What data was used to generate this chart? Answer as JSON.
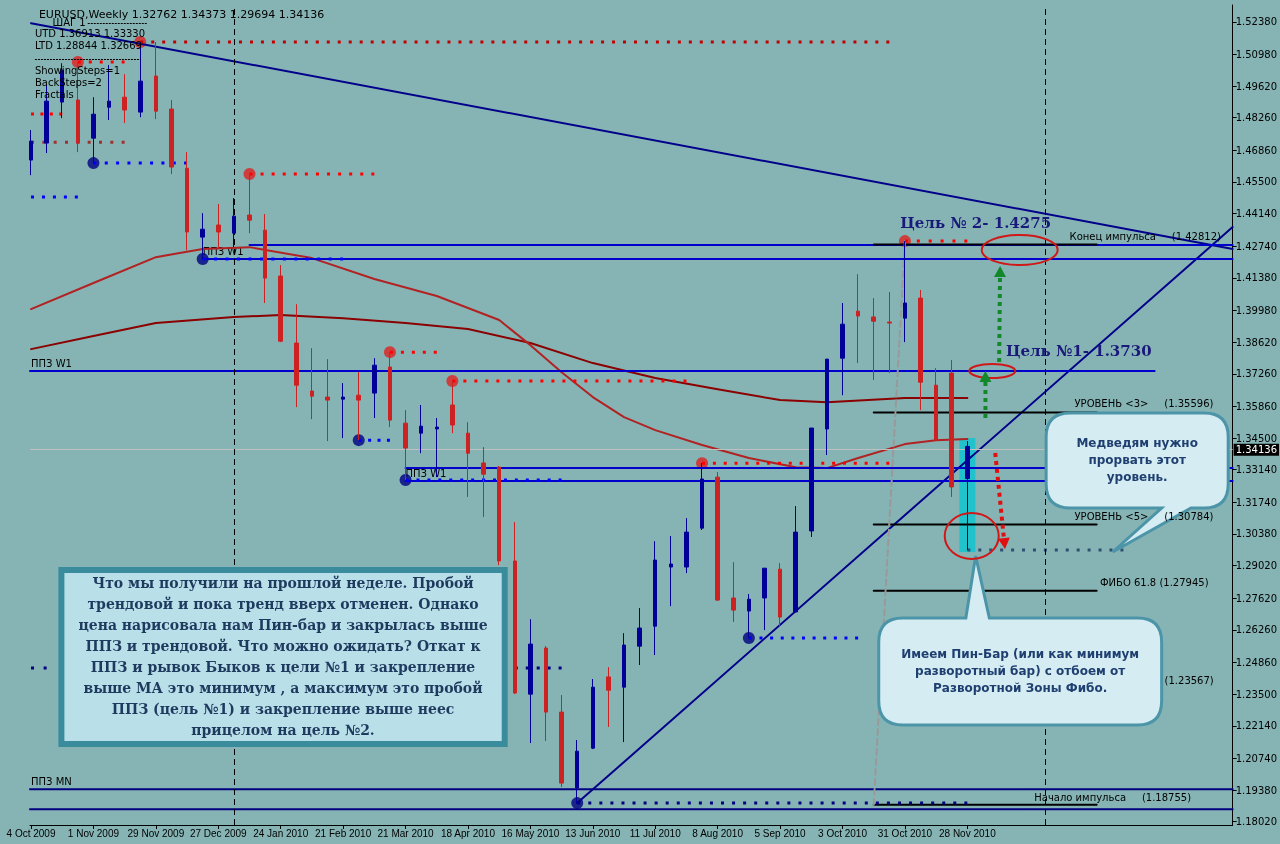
{
  "chart_data": {
    "type": "candlestick",
    "title": "EURUSD,Weekly 1.32762 1.34373 1.29694 1.34136",
    "x": [
      "2009-10-04",
      "2009-10-11",
      "2009-10-18",
      "2009-10-25",
      "2009-11-01",
      "2009-11-08",
      "2009-11-15",
      "2009-11-22",
      "2009-11-29",
      "2009-12-06",
      "2009-12-13",
      "2009-12-20",
      "2009-12-27",
      "2010-01-03",
      "2010-01-10",
      "2010-01-17",
      "2010-01-24",
      "2010-01-31",
      "2010-02-07",
      "2010-02-14",
      "2010-02-21",
      "2010-02-28",
      "2010-03-07",
      "2010-03-14",
      "2010-03-21",
      "2010-03-28",
      "2010-04-04",
      "2010-04-11",
      "2010-04-18",
      "2010-04-25",
      "2010-05-02",
      "2010-05-09",
      "2010-05-16",
      "2010-05-23",
      "2010-05-30",
      "2010-06-06",
      "2010-06-13",
      "2010-06-20",
      "2010-06-27",
      "2010-07-04",
      "2010-07-11",
      "2010-07-18",
      "2010-07-25",
      "2010-08-01",
      "2010-08-08",
      "2010-08-15",
      "2010-08-22",
      "2010-08-29",
      "2010-09-05",
      "2010-09-12",
      "2010-09-19",
      "2010-09-26",
      "2010-10-03",
      "2010-10-10",
      "2010-10-17",
      "2010-10-24",
      "2010-10-31",
      "2010-11-07",
      "2010-11-14",
      "2010-11-21",
      "2010-11-28"
    ],
    "ohlc": [
      [
        1.4644,
        1.4773,
        1.4579,
        1.4725
      ],
      [
        1.4717,
        1.4966,
        1.4674,
        1.4897
      ],
      [
        1.4893,
        1.506,
        1.4824,
        1.503
      ],
      [
        1.4902,
        1.5065,
        1.4678,
        1.4717
      ],
      [
        1.4738,
        1.4914,
        1.4631,
        1.4841
      ],
      [
        1.4871,
        1.5052,
        1.4816,
        1.4897
      ],
      [
        1.4914,
        1.5013,
        1.4803,
        1.4859
      ],
      [
        1.485,
        1.5151,
        1.4828,
        1.4983
      ],
      [
        1.5005,
        1.5151,
        1.482,
        1.4854
      ],
      [
        1.4863,
        1.4902,
        1.4584,
        1.4614
      ],
      [
        1.4609,
        1.4678,
        1.4257,
        1.4335
      ],
      [
        1.4313,
        1.4416,
        1.4219,
        1.4347
      ],
      [
        1.4365,
        1.4455,
        1.4266,
        1.4335
      ],
      [
        1.433,
        1.4481,
        1.427,
        1.4403
      ],
      [
        1.4408,
        1.4584,
        1.433,
        1.4386
      ],
      [
        1.4343,
        1.4412,
        1.403,
        1.4137
      ],
      [
        1.4146,
        1.4193,
        1.3862,
        1.3866
      ],
      [
        1.3858,
        1.4025,
        1.3583,
        1.3677
      ],
      [
        1.3652,
        1.3836,
        1.3531,
        1.363
      ],
      [
        1.3626,
        1.3789,
        1.3437,
        1.3613
      ],
      [
        1.3617,
        1.3686,
        1.345,
        1.3626
      ],
      [
        1.3634,
        1.3733,
        1.3441,
        1.3613
      ],
      [
        1.3643,
        1.3793,
        1.3536,
        1.3763
      ],
      [
        1.3755,
        1.3819,
        1.3497,
        1.3527
      ],
      [
        1.3514,
        1.357,
        1.327,
        1.3407
      ],
      [
        1.3471,
        1.3592,
        1.3385,
        1.3501
      ],
      [
        1.3489,
        1.3536,
        1.3282,
        1.3497
      ],
      [
        1.3592,
        1.3695,
        1.3471,
        1.3506
      ],
      [
        1.3471,
        1.3518,
        1.3197,
        1.3385
      ],
      [
        1.3343,
        1.3411,
        1.3111,
        1.3295
      ],
      [
        1.3325,
        1.333,
        1.2904,
        1.2922
      ],
      [
        1.2922,
        1.3089,
        1.2351,
        1.2355
      ],
      [
        1.235,
        1.2672,
        1.214,
        1.2565
      ],
      [
        1.2548,
        1.2557,
        1.2149,
        1.2273
      ],
      [
        1.2273,
        1.2346,
        1.1951,
        1.1968
      ],
      [
        1.1947,
        1.2153,
        1.1882,
        1.2105
      ],
      [
        1.2118,
        1.2415,
        1.2114,
        1.238
      ],
      [
        1.2424,
        1.2466,
        1.2209,
        1.2367
      ],
      [
        1.238,
        1.2612,
        1.2144,
        1.2561
      ],
      [
        1.2556,
        1.272,
        1.2475,
        1.2634
      ],
      [
        1.2642,
        1.3007,
        1.2518,
        1.2926
      ],
      [
        1.2896,
        1.3029,
        1.2728,
        1.2909
      ],
      [
        1.2896,
        1.3106,
        1.287,
        1.3046
      ],
      [
        1.3063,
        1.3342,
        1.3055,
        1.3274
      ],
      [
        1.3282,
        1.3304,
        1.275,
        1.2754
      ],
      [
        1.2763,
        1.2917,
        1.266,
        1.2711
      ],
      [
        1.2707,
        1.278,
        1.2591,
        1.2758
      ],
      [
        1.2763,
        1.2891,
        1.2625,
        1.2891
      ],
      [
        1.2887,
        1.2913,
        1.2642,
        1.2681
      ],
      [
        1.2703,
        1.3158,
        1.2703,
        1.3046
      ],
      [
        1.3051,
        1.3493,
        1.3025,
        1.3493
      ],
      [
        1.3489,
        1.3789,
        1.3377,
        1.3789
      ],
      [
        1.3793,
        1.403,
        1.3634,
        1.3939
      ],
      [
        1.3995,
        1.4154,
        1.3772,
        1.3974
      ],
      [
        1.397,
        1.4051,
        1.3699,
        1.3952
      ],
      [
        1.3948,
        1.4077,
        1.3729,
        1.3944
      ],
      [
        1.3965,
        1.4296,
        1.3862,
        1.403
      ],
      [
        1.4051,
        1.4086,
        1.357,
        1.369
      ],
      [
        1.3677,
        1.375,
        1.3441,
        1.3441
      ],
      [
        1.3729,
        1.3785,
        1.3197,
        1.324
      ],
      [
        1.3276,
        1.3437,
        1.2969,
        1.3414
      ]
    ],
    "colors": [
      "#000099",
      "#000099",
      "#000099",
      "#cc2222",
      "#000099",
      "#000099",
      "#cc2222",
      "#000099",
      "#cc2222",
      "#cc2222",
      "#cc2222",
      "#000099",
      "#cc2222",
      "#000099",
      "#cc2222",
      "#cc2222",
      "#cc2222",
      "#cc2222",
      "#cc2222",
      "#cc2222",
      "#000099",
      "#cc2222",
      "#000099",
      "#cc2222",
      "#cc2222",
      "#000099",
      "#000099",
      "#cc2222",
      "#cc2222",
      "#cc2222",
      "#cc2222",
      "#cc2222",
      "#000099",
      "#cc2222",
      "#cc2222",
      "#000099",
      "#000099",
      "#cc2222",
      "#000099",
      "#000099",
      "#000099",
      "#000099",
      "#000099",
      "#000099",
      "#cc2222",
      "#cc2222",
      "#000099",
      "#000099",
      "#cc2222",
      "#000099",
      "#000099",
      "#000099",
      "#000099",
      "#cc2222",
      "#cc2222",
      "#cc2222",
      "#000099",
      "#cc2222",
      "#cc2222",
      "#cc2222",
      "#000099"
    ],
    "series": [
      {
        "type": "line",
        "color": "#8b0000",
        "x": [
          "2009-10-04",
          "2009-11-01",
          "2009-11-29",
          "2010-01-03",
          "2010-01-24",
          "2010-02-21",
          "2010-03-21",
          "2010-04-18",
          "2010-05-16",
          "2010-06-13",
          "2010-07-11",
          "2010-08-08",
          "2010-09-05",
          "2010-09-26",
          "2010-10-31",
          "2010-11-28"
        ],
        "values": [
          1.3832,
          1.3888,
          1.3944,
          1.397,
          1.3978,
          1.3965,
          1.3944,
          1.3918,
          1.3858,
          1.3772,
          1.3708,
          1.366,
          1.3613,
          1.3604,
          1.3622,
          1.3622
        ]
      },
      {
        "type": "line",
        "color": "#b22222",
        "x": [
          "2009-10-04",
          "2009-11-01",
          "2009-11-29",
          "2009-12-20",
          "2010-01-10",
          "2010-02-07",
          "2010-03-07",
          "2010-04-04",
          "2010-05-02",
          "2010-05-16",
          "2010-05-30",
          "2010-06-13",
          "2010-06-27",
          "2010-07-11",
          "2010-08-01",
          "2010-08-22",
          "2010-09-12",
          "2010-09-26",
          "2010-10-10",
          "2010-10-31",
          "2010-11-14",
          "2010-11-28"
        ],
        "values": [
          1.4004,
          1.4116,
          1.4227,
          1.4262,
          1.427,
          1.4223,
          1.4133,
          1.406,
          1.3957,
          1.3849,
          1.3733,
          1.3626,
          1.354,
          1.3484,
          1.342,
          1.3364,
          1.3325,
          1.3321,
          1.3364,
          1.3424,
          1.3441,
          1.3446
        ]
      },
      {
        "type": "line",
        "color": "#00008b",
        "x": [
          "2009-10-04",
          "2011-03-27"
        ],
        "values": [
          1.5232,
          1.4262
        ]
      },
      {
        "type": "line",
        "color": "#00008b",
        "x": [
          "2010-06-06",
          "2011-03-27"
        ],
        "values": [
          1.1882,
          1.4356
        ]
      },
      {
        "type": "line",
        "color": "#0000cc",
        "x": [
          "2010-01-10",
          "2011-03-27"
        ],
        "values": [
          1.4279,
          1.4279
        ]
      },
      {
        "type": "line",
        "color": "#0000cc",
        "x": [
          "2009-12-20",
          "2011-03-27"
        ],
        "values": [
          1.4219,
          1.4219
        ]
      },
      {
        "type": "line",
        "color": "#0000cc",
        "x": [
          "2009-10-03T13:00",
          "2011-02-20"
        ],
        "values": [
          1.3738,
          1.3738
        ]
      },
      {
        "type": "line",
        "color": "#0000cc",
        "x": [
          "2010-03-21",
          "2011-03-27"
        ],
        "values": [
          1.3321,
          1.3321
        ]
      },
      {
        "type": "line",
        "color": "#0000cc",
        "x": [
          "2010-03-21",
          "2011-03-27"
        ],
        "values": [
          1.3265,
          1.3265
        ]
      },
      {
        "type": "line",
        "color": "#000080",
        "x": [
          "2009-10-03T13:00",
          "2011-03-27"
        ],
        "values": [
          1.1942,
          1.1942
        ]
      },
      {
        "type": "line",
        "color": "#000080",
        "x": [
          "2009-10-03T13:00",
          "2011-03-27"
        ],
        "values": [
          1.1856,
          1.1856
        ]
      },
      {
        "type": "line",
        "color": "#000000",
        "x": [
          "2010-10-17",
          "2011-01-25"
        ],
        "values": [
          1.42812,
          1.42812
        ]
      },
      {
        "type": "line",
        "color": "#000000",
        "x": [
          "2010-10-17",
          "2011-01-25"
        ],
        "values": [
          1.35596,
          1.35596
        ]
      },
      {
        "type": "line",
        "color": "#000000",
        "x": [
          "2010-10-17",
          "2011-01-25"
        ],
        "values": [
          1.30784,
          1.30784
        ]
      },
      {
        "type": "line",
        "color": "#000000",
        "x": [
          "2010-10-17",
          "2011-01-25"
        ],
        "values": [
          1.27945,
          1.27945
        ]
      },
      {
        "type": "line",
        "color": "#000000",
        "x": [
          "2010-10-17",
          "2011-01-25"
        ],
        "values": [
          1.18755,
          1.18755
        ]
      },
      {
        "type": "line",
        "color": "#999999",
        "line_style": "dashed",
        "x": [
          "2010-10-17",
          "2010-10-31"
        ],
        "values": [
          1.18755,
          1.4296
        ]
      },
      {
        "type": "line",
        "color": "#2f4f6f",
        "line_style": "dotted",
        "x": [
          "2010-11-28",
          "2011-02-06"
        ],
        "values": [
          1.2969,
          1.2969
        ]
      },
      {
        "type": "line",
        "color": "#c00000",
        "line_style": "dotted",
        "x": [
          "2009-11-22",
          "2010-10-24"
        ],
        "values": [
          1.5151,
          1.5151
        ]
      },
      {
        "type": "line",
        "color": "#ff0000",
        "line_style": "dotted",
        "x": [
          "2009-10-25",
          "2009-11-15"
        ],
        "values": [
          1.5065,
          1.5065
        ]
      },
      {
        "type": "line",
        "color": "#ff0000",
        "line_style": "dotted",
        "x": [
          "2009-10-04",
          "2009-10-18"
        ],
        "values": [
          1.4842,
          1.4842
        ]
      },
      {
        "type": "line",
        "color": "#a03030",
        "line_style": "dotted",
        "x": [
          "2009-10-04",
          "2009-11-15"
        ],
        "values": [
          1.4721,
          1.4721
        ]
      },
      {
        "type": "line",
        "color": "#ff0000",
        "line_style": "dotted",
        "x": [
          "2010-01-10",
          "2010-03-07"
        ],
        "values": [
          1.4584,
          1.4584
        ]
      },
      {
        "type": "line",
        "color": "#ff0000",
        "line_style": "dotted",
        "x": [
          "2010-03-14",
          "2010-04-04"
        ],
        "values": [
          1.3819,
          1.3819
        ]
      },
      {
        "type": "line",
        "color": "#ff0000",
        "line_style": "dotted",
        "x": [
          "2010-04-11",
          "2010-07-25"
        ],
        "values": [
          1.3695,
          1.3695
        ]
      },
      {
        "type": "line",
        "color": "#ff0000",
        "line_style": "dotted",
        "x": [
          "2010-08-01",
          "2010-10-24"
        ],
        "values": [
          1.3342,
          1.3342
        ]
      },
      {
        "type": "line",
        "color": "#ff0000",
        "line_style": "dotted",
        "x": [
          "2010-10-31",
          "2010-11-28"
        ],
        "values": [
          1.4296,
          1.4296
        ]
      },
      {
        "type": "line",
        "color": "#0000ff",
        "line_style": "dotted",
        "x": [
          "2009-11-01",
          "2009-12-13"
        ],
        "values": [
          1.4631,
          1.4631
        ]
      },
      {
        "type": "line",
        "color": "#0000ff",
        "line_style": "dotted",
        "x": [
          "2009-10-04",
          "2009-10-25"
        ],
        "values": [
          1.4485,
          1.4485
        ]
      },
      {
        "type": "line",
        "color": "#0000ff",
        "line_style": "dotted",
        "x": [
          "2009-12-20",
          "2010-02-21"
        ],
        "values": [
          1.4219,
          1.4219
        ]
      },
      {
        "type": "line",
        "color": "#0000ff",
        "line_style": "dotted",
        "x": [
          "2010-02-28",
          "2010-03-14"
        ],
        "values": [
          1.3441,
          1.3441
        ]
      },
      {
        "type": "line",
        "color": "#0000ff",
        "line_style": "dotted",
        "x": [
          "2010-03-21",
          "2010-05-30"
        ],
        "values": [
          1.327,
          1.327
        ]
      },
      {
        "type": "line",
        "color": "#000080",
        "line_style": "dotted",
        "x": [
          "2009-10-04",
          "2009-10-11"
        ],
        "values": [
          1.2462,
          1.2462
        ]
      },
      {
        "type": "line",
        "color": "#000080",
        "line_style": "dotted",
        "x": [
          "2010-05-09",
          "2010-05-30"
        ],
        "values": [
          1.2462,
          1.2462
        ]
      },
      {
        "type": "line",
        "color": "#0000ff",
        "line_style": "dotted",
        "x": [
          "2010-08-22",
          "2010-10-10"
        ],
        "values": [
          1.2591,
          1.2591
        ]
      },
      {
        "type": "line",
        "color": "#000080",
        "line_style": "dotted",
        "x": [
          "2010-06-06",
          "2010-11-28"
        ],
        "values": [
          1.1882,
          1.1882
        ]
      },
      {
        "type": "scatter",
        "color": "#dd2222",
        "marker": "circle",
        "x": [
          "2009-10-25",
          "2009-11-22",
          "2010-01-10",
          "2010-03-14",
          "2010-04-11",
          "2010-08-01",
          "2010-10-31"
        ],
        "values": [
          1.5065,
          1.5151,
          1.4584,
          1.3819,
          1.3695,
          1.3342,
          1.4296
        ]
      },
      {
        "type": "scatter",
        "color": "#000080",
        "marker": "circle",
        "x": [
          "2009-11-01",
          "2009-12-20",
          "2010-02-28",
          "2010-03-21",
          "2010-06-06",
          "2010-08-22"
        ],
        "values": [
          1.4631,
          1.4219,
          1.3441,
          1.327,
          1.1882,
          1.2591
        ]
      }
    ],
    "xlim": [
      "2009-10-03T13:00",
      "2011-03-27"
    ],
    "xticks": [
      {
        "value": "2009-10-04",
        "label": "4 Oct 2009"
      },
      {
        "value": "2009-11-01",
        "label": "1 Nov 2009"
      },
      {
        "value": "2009-11-29",
        "label": "29 Nov 2009"
      },
      {
        "value": "2009-12-27",
        "label": "27 Dec 2009"
      },
      {
        "value": "2010-01-24",
        "label": "24 Jan 2010"
      },
      {
        "value": "2010-02-21",
        "label": "21 Feb 2010"
      },
      {
        "value": "2010-03-21",
        "label": "21 Mar 2010"
      },
      {
        "value": "2010-04-18",
        "label": "18 Apr 2010"
      },
      {
        "value": "2010-05-16",
        "label": "16 May 2010"
      },
      {
        "value": "2010-06-13",
        "label": "13 Jun 2010"
      },
      {
        "value": "2010-07-11",
        "label": "11 Jul 2010"
      },
      {
        "value": "2010-08-08",
        "label": "8 Aug 2010"
      },
      {
        "value": "2010-09-05",
        "label": "5 Sep 2010"
      },
      {
        "value": "2010-10-03",
        "label": "3 Oct 2010"
      },
      {
        "value": "2010-10-31",
        "label": "31 Oct 2010"
      },
      {
        "value": "2010-11-28",
        "label": "28 Nov 2010"
      }
    ],
    "ylim": [
      1.1788,
      1.531
    ],
    "yticks": [
      {
        "value": 1.5238,
        "label": "1.52380"
      },
      {
        "value": 1.5098,
        "label": "1.50980"
      },
      {
        "value": 1.4962,
        "label": "1.49620"
      },
      {
        "value": 1.4826,
        "label": "1.48260"
      },
      {
        "value": 1.4686,
        "label": "1.46860"
      },
      {
        "value": 1.455,
        "label": "1.45500"
      },
      {
        "value": 1.4414,
        "label": "1.44140"
      },
      {
        "value": 1.4274,
        "label": "1.42740"
      },
      {
        "value": 1.4138,
        "label": "1.41380"
      },
      {
        "value": 1.3998,
        "label": "1.39980"
      },
      {
        "value": 1.3862,
        "label": "1.38620"
      },
      {
        "value": 1.3726,
        "label": "1.37260"
      },
      {
        "value": 1.3586,
        "label": "1.35860"
      },
      {
        "value": 1.345,
        "label": "1.34500"
      },
      {
        "value": 1.3314,
        "label": "1.33140"
      },
      {
        "value": 1.3174,
        "label": "1.31740"
      },
      {
        "value": 1.3038,
        "label": "1.30380"
      },
      {
        "value": 1.2902,
        "label": "1.29020"
      },
      {
        "value": 1.2762,
        "label": "1.27620"
      },
      {
        "value": 1.2626,
        "label": "1.26260"
      },
      {
        "value": 1.2486,
        "label": "1.24860"
      },
      {
        "value": 1.235,
        "label": "1.23500"
      },
      {
        "value": 1.2214,
        "label": "1.22140"
      },
      {
        "value": 1.2074,
        "label": "1.20740"
      },
      {
        "value": 1.1938,
        "label": "1.19380"
      },
      {
        "value": 1.1802,
        "label": "1.18020"
      }
    ],
    "ref_lines": [
      {
        "axis": "y",
        "value": 1.34136,
        "label": "1.34136",
        "color": "#c0c0c0"
      },
      {
        "axis": "x",
        "value": "2010-01-03",
        "color": "#000000",
        "line_style": "dashed"
      },
      {
        "axis": "x",
        "value": "2011-01-02",
        "color": "#000000",
        "line_style": "dashed"
      }
    ],
    "annotations": [
      "ШАГ 1",
      "UTD 1.36913 1.33330",
      "LTD 1.28844 1.32669",
      "ShowingSteps=1",
      "BackSteps=2",
      "Fractals",
      "Что мы получили на прошлой неделе. Пробой трендовой и пока тренд вверх отменен. Однако цена нарисовала нам Пин-бар и закрылась выше ППЗ и трендовой. Что можно ожидать? Откат к ППЗ и рывок Быков к цели №1 и закрепление выше МА это минимум , а максимум это пробой ППЗ (цель №1) и закрепление выше неес прицелом на цель №2.",
      "Медведям нужно прорвать этот уровень.",
      "Имеем Пин-Бар (или как минимум разворотный бар) с отбоем от Разворотной Зоны Фибо.",
      "Цель № 2- 1.4275",
      "Цель №1- 1.3730",
      "Конец импульса     (1.42812)",
      "УРОВЕНЬ <3>     (1.35596)",
      "УРОВЕНЬ <5>     (1.30784)",
      "ФИБО 61.8 (1.27945)",
      "(1.23567)",
      {
        "text": "ППЗ W1",
        "x": "2009-10-04",
        "y": 1.3738
      },
      {
        "text": "ППЗ W1",
        "x": "2009-12-20",
        "y": 1.4219
      },
      {
        "text": "ППЗ W1",
        "x": "2010-03-21",
        "y": 1.3265
      },
      {
        "text": "ППЗ MN",
        "x": "2009-10-04",
        "y": 1.1942
      },
      {
        "text": "Начало импульса     (1.18755)",
        "x": "2010-12-28",
        "y": 1.18755
      }
    ]
  }
}
